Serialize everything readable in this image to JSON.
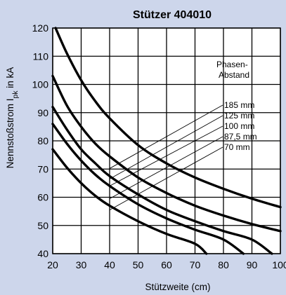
{
  "chart_data": {
    "type": "line",
    "title": "Stützer 404010",
    "xlabel": "Stützweite (cm)",
    "ylabel_main": "Nennstoßstrom I",
    "ylabel_sub": "pk",
    "ylabel_unit": " in kA",
    "xlim": [
      20,
      100
    ],
    "ylim": [
      40,
      120
    ],
    "x_ticks": [
      20,
      30,
      40,
      50,
      60,
      70,
      80,
      90,
      100
    ],
    "y_ticks": [
      40,
      50,
      60,
      70,
      80,
      90,
      100,
      110,
      120
    ],
    "grid": true,
    "legend_title_line1": "Phasen-",
    "legend_title_line2": "Abstand",
    "series": [
      {
        "name": "185 mm",
        "x": [
          21,
          25,
          30,
          35,
          40,
          50,
          60,
          70,
          80,
          90,
          100
        ],
        "y": [
          120,
          111,
          101.5,
          94,
          88,
          78.5,
          72,
          67,
          63,
          59.5,
          56.5
        ],
        "label_anchor": {
          "x": 40,
          "y": 70.2
        }
      },
      {
        "name": "125 mm",
        "x": [
          20,
          25,
          30,
          35,
          40,
          50,
          60,
          70,
          80,
          90,
          100
        ],
        "y": [
          103,
          92.5,
          85,
          79,
          74.5,
          67,
          61.5,
          57,
          53.5,
          50.5,
          48
        ],
        "label_anchor": {
          "x": 40,
          "y": 66.5
        }
      },
      {
        "name": "100 mm",
        "x": [
          20,
          25,
          30,
          35,
          40,
          50,
          60,
          70,
          80,
          90,
          97
        ],
        "y": [
          92,
          84,
          77,
          72,
          67.5,
          61,
          55.5,
          51.5,
          48,
          45,
          40
        ],
        "label_anchor": {
          "x": 40,
          "y": 64
        }
      },
      {
        "name": "87,5 mm",
        "x": [
          20,
          25,
          30,
          35,
          40,
          50,
          60,
          70,
          80,
          87
        ],
        "y": [
          86,
          79,
          73,
          68,
          64,
          57.5,
          52.5,
          48.5,
          45,
          40
        ],
        "label_anchor": {
          "x": 40,
          "y": 59.5
        }
      },
      {
        "name": "70 mm",
        "x": [
          20,
          25,
          30,
          35,
          40,
          50,
          60,
          70,
          74
        ],
        "y": [
          77,
          70.5,
          65,
          60.5,
          57,
          51.5,
          47,
          43.5,
          40
        ],
        "label_anchor": {
          "x": 40,
          "y": 55.5
        }
      }
    ]
  }
}
